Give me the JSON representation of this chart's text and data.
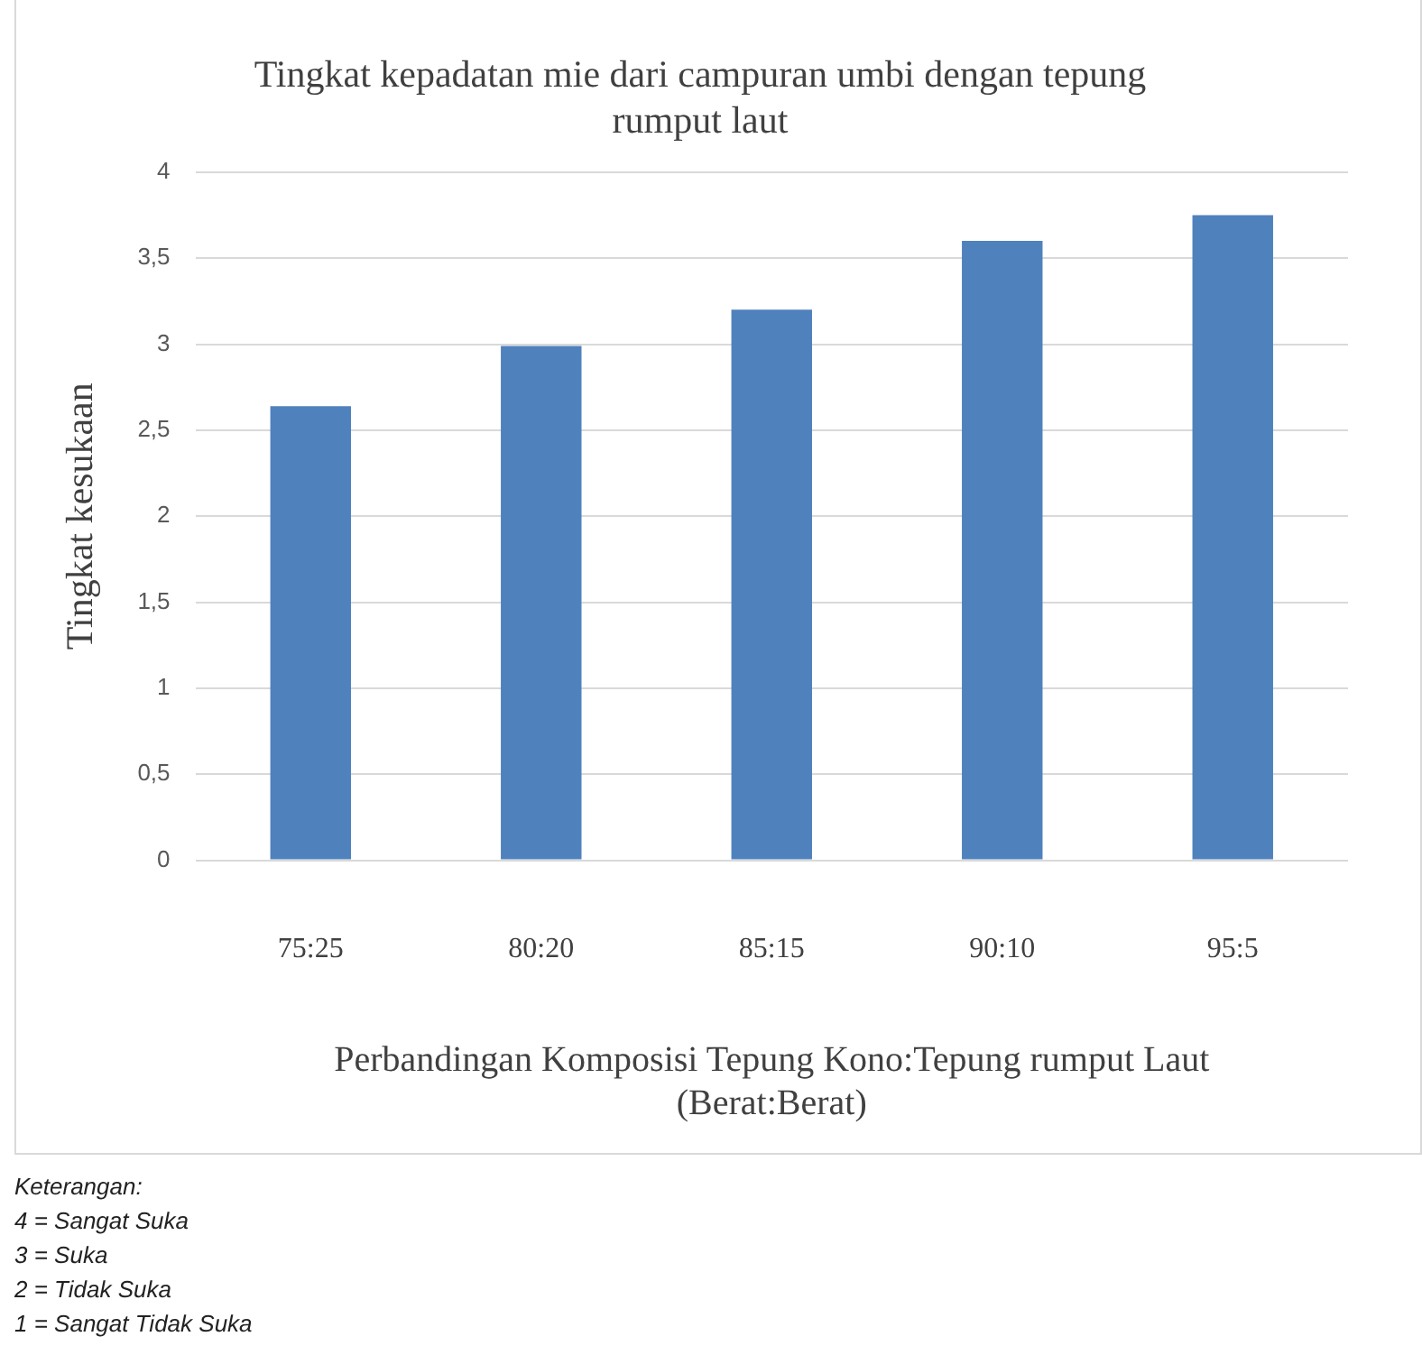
{
  "chart_data": {
    "type": "bar",
    "title": "Tingkat kepadatan mie dari campuran umbi dengan tepung rumput laut",
    "xlabel": "Perbandingan Komposisi Tepung Kono:Tepung rumput Laut (Berat:Berat)",
    "ylabel": "Tingkat kesukaan",
    "categories": [
      "75:25",
      "80:20",
      "85:15",
      "90:10",
      "95:5"
    ],
    "values": [
      2.64,
      2.99,
      3.2,
      3.6,
      3.75
    ],
    "color": "#4f81bd",
    "ylim": [
      0,
      4
    ],
    "yticks": [
      0,
      {
        "value": 0.5,
        "label": "0,5"
      },
      1,
      {
        "value": 1.5,
        "label": "1,5"
      },
      2,
      {
        "value": 2.5,
        "label": "2,5"
      },
      3,
      {
        "value": 3.5,
        "label": "3,5"
      },
      4
    ],
    "grid": "y",
    "legend": false,
    "annotations": [
      "Keterangan:",
      "4 = Sangat Suka",
      "3 = Suka",
      "2 = Tidak Suka",
      "1 = Sangat Tidak Suka"
    ]
  }
}
